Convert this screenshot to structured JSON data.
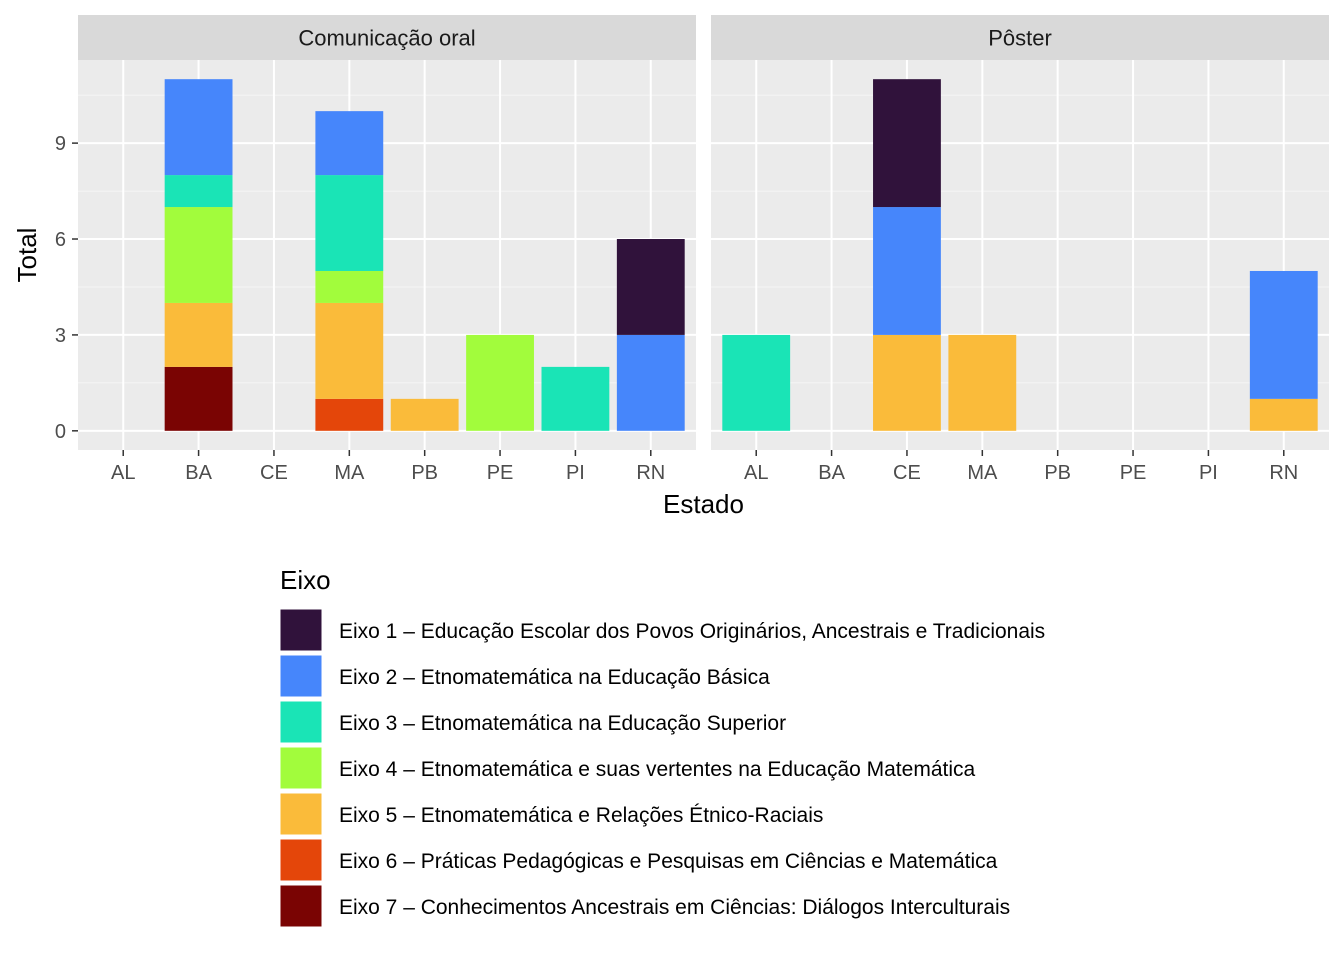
{
  "chart_data": {
    "type": "bar",
    "stacked": true,
    "faceted": true,
    "xlabel": "Estado",
    "ylabel": "Total",
    "ylim": [
      -0.6,
      11.6
    ],
    "yticks": [
      0,
      3,
      6,
      9
    ],
    "categories": [
      "AL",
      "BA",
      "CE",
      "MA",
      "PB",
      "PE",
      "PI",
      "RN"
    ],
    "legend": {
      "title": "Eixo",
      "position": "bottom",
      "items": [
        {
          "key": "e1",
          "label": "Eixo 1 – Educação Escolar dos Povos Originários, Ancestrais e Tradicionais",
          "color": "#30123b"
        },
        {
          "key": "e2",
          "label": "Eixo 2 – Etnomatemática na Educação Básica",
          "color": "#4686fb"
        },
        {
          "key": "e3",
          "label": "Eixo 3 – Etnomatemática na Educação Superior",
          "color": "#1ae4b6"
        },
        {
          "key": "e4",
          "label": "Eixo 4 – Etnomatemática e suas vertentes na Educação Matemática",
          "color": "#a2fc3c"
        },
        {
          "key": "e5",
          "label": "Eixo 5 – Etnomatemática e Relações Étnico-Raciais",
          "color": "#fabb3a"
        },
        {
          "key": "e6",
          "label": "Eixo 6 – Práticas Pedagógicas e Pesquisas em Ciências e Matemática",
          "color": "#e4460a"
        },
        {
          "key": "e7",
          "label": "Eixo 7 – Conhecimentos Ancestrais em Ciências: Diálogos Interculturais",
          "color": "#7a0403"
        }
      ]
    },
    "stack_order": [
      "e7",
      "e6",
      "e5",
      "e4",
      "e3",
      "e2",
      "e1"
    ],
    "panels": [
      {
        "title": "Comunicação oral",
        "bars": {
          "AL": {},
          "BA": {
            "e7": 2,
            "e5": 2,
            "e4": 3,
            "e3": 1,
            "e2": 3
          },
          "CE": {},
          "MA": {
            "e6": 1,
            "e5": 3,
            "e4": 1,
            "e3": 3,
            "e2": 2
          },
          "PB": {
            "e5": 1
          },
          "PE": {
            "e4": 3
          },
          "PI": {
            "e3": 2
          },
          "RN": {
            "e2": 3,
            "e1": 3
          }
        }
      },
      {
        "title": "Pôster",
        "bars": {
          "AL": {
            "e3": 3
          },
          "BA": {},
          "CE": {
            "e5": 3,
            "e2": 4,
            "e1": 4
          },
          "MA": {
            "e5": 3
          },
          "PB": {},
          "PE": {},
          "PI": {},
          "RN": {
            "e5": 1,
            "e2": 4
          }
        }
      }
    ]
  }
}
